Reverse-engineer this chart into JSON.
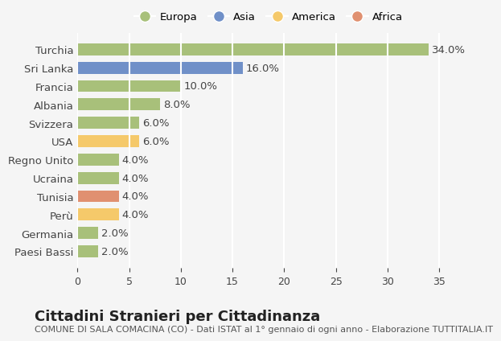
{
  "categories": [
    "Paesi Bassi",
    "Germania",
    "Perù",
    "Tunisia",
    "Ucraina",
    "Regno Unito",
    "USA",
    "Svizzera",
    "Albania",
    "Francia",
    "Sri Lanka",
    "Turchia"
  ],
  "values": [
    2.0,
    2.0,
    4.0,
    4.0,
    4.0,
    4.0,
    6.0,
    6.0,
    8.0,
    10.0,
    16.0,
    34.0
  ],
  "colors": [
    "#a8c07a",
    "#a8c07a",
    "#f5c96a",
    "#e09070",
    "#a8c07a",
    "#a8c07a",
    "#f5c96a",
    "#a8c07a",
    "#a8c07a",
    "#a8c07a",
    "#7090c8",
    "#a8c07a"
  ],
  "legend_labels": [
    "Europa",
    "Asia",
    "America",
    "Africa"
  ],
  "legend_colors": [
    "#a8c07a",
    "#7090c8",
    "#f5c96a",
    "#e09070"
  ],
  "title": "Cittadini Stranieri per Cittadinanza",
  "subtitle": "COMUNE DI SALA COMACINA (CO) - Dati ISTAT al 1° gennaio di ogni anno - Elaborazione TUTTITALIA.IT",
  "xlim": [
    0,
    37
  ],
  "xticks": [
    0,
    5,
    10,
    15,
    20,
    25,
    30,
    35
  ],
  "bg_color": "#f5f5f5",
  "bar_height": 0.65,
  "grid_color": "#ffffff",
  "title_fontsize": 13,
  "subtitle_fontsize": 8,
  "label_fontsize": 9.5
}
